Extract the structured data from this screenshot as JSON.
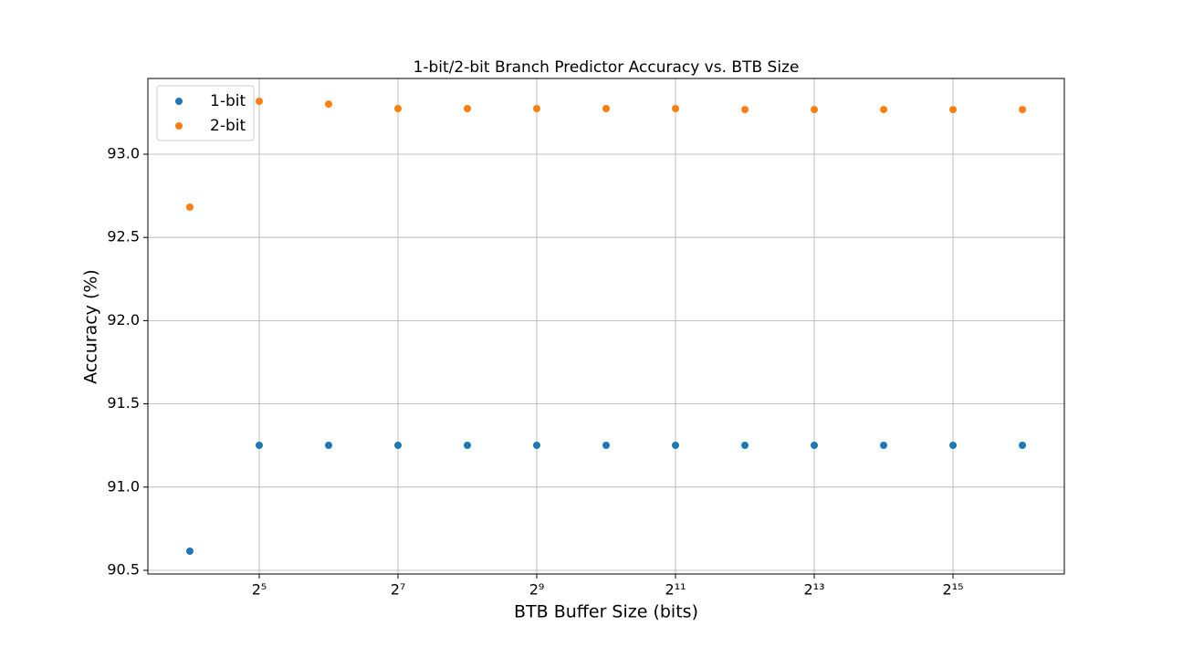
{
  "chart_data": {
    "type": "scatter",
    "title": "1-bit/2-bit Branch Predictor Accuracy vs. BTB Size",
    "xlabel": "BTB Buffer Size (bits)",
    "ylabel": "Accuracy (%)",
    "xscale": "log",
    "xbase": 2,
    "x": [
      16,
      32,
      64,
      128,
      256,
      512,
      1024,
      2048,
      4096,
      8192,
      16384,
      32768,
      65536
    ],
    "series": [
      {
        "name": "1-bit",
        "color": "#1f77b4",
        "values": [
          90.615,
          91.251,
          91.251,
          91.251,
          91.251,
          91.251,
          91.251,
          91.251,
          91.251,
          91.251,
          91.251,
          91.251,
          91.251
        ]
      },
      {
        "name": "2-bit",
        "color": "#ff7f0e",
        "values": [
          92.682,
          93.318,
          93.301,
          93.274,
          93.274,
          93.274,
          93.274,
          93.274,
          93.268,
          93.268,
          93.268,
          93.268,
          93.268
        ]
      }
    ],
    "xlim": [
      10.52,
      99630
    ],
    "xticks": [
      {
        "value": 32,
        "label": "2⁵"
      },
      {
        "value": 128,
        "label": "2⁷"
      },
      {
        "value": 512,
        "label": "2⁹"
      },
      {
        "value": 2048,
        "label": "2¹¹"
      },
      {
        "value": 8192,
        "label": "2¹³"
      },
      {
        "value": 32768,
        "label": "2¹⁵"
      }
    ],
    "ylim": [
      90.478,
      93.455
    ],
    "yticks": [
      90.5,
      {
        "value": 91,
        "label": "91.0"
      },
      91.5,
      {
        "value": 92,
        "label": "92.0"
      },
      92.5,
      {
        "value": 93,
        "label": "93.0"
      }
    ],
    "grid": true,
    "legend": "upper left"
  }
}
